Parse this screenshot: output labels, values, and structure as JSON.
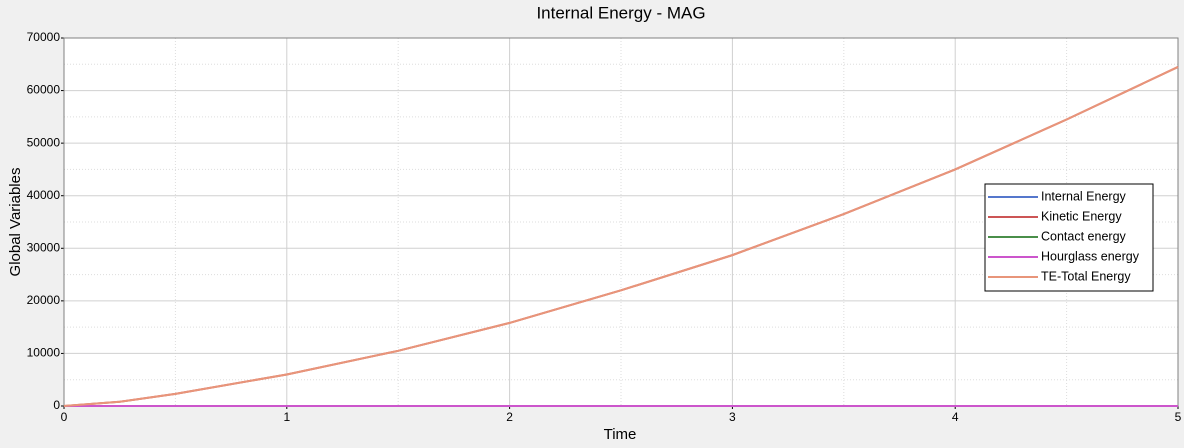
{
  "chart_data": {
    "type": "line",
    "title": "Internal Energy - MAG",
    "x_label": "Time",
    "y_label": "Global Variables",
    "x": [
      0,
      0.25,
      0.5,
      1,
      1.5,
      2,
      2.5,
      3,
      3.5,
      4,
      4.5,
      5
    ],
    "series": [
      {
        "name": "Internal Energy",
        "color": "#5577cc",
        "values": [
          0,
          0,
          0,
          0,
          0,
          0,
          0,
          0,
          0,
          0,
          0,
          0
        ]
      },
      {
        "name": "Kinetic Energy",
        "color": "#cc5555",
        "values": [
          0,
          800,
          2300,
          6000,
          10500,
          15800,
          22000,
          28700,
          36500,
          45000,
          54500,
          64500
        ]
      },
      {
        "name": "Contact energy",
        "color": "#4a8f4a",
        "values": [
          0,
          0,
          0,
          0,
          0,
          0,
          0,
          0,
          0,
          0,
          0,
          0
        ]
      },
      {
        "name": "Hourglass energy",
        "color": "#cc55cc",
        "values": [
          0,
          0,
          0,
          0,
          0,
          0,
          0,
          0,
          0,
          0,
          0,
          0
        ]
      },
      {
        "name": "TE-Total Energy",
        "color": "#e8957a",
        "values": [
          0,
          800,
          2300,
          6000,
          10500,
          15800,
          22000,
          28700,
          36500,
          45000,
          54500,
          64500
        ]
      }
    ],
    "xlim": [
      0,
      5
    ],
    "xticks": [
      0,
      1,
      2,
      3,
      4,
      5
    ],
    "ylim": [
      0,
      70000
    ],
    "yticks": [
      0,
      10000,
      20000,
      30000,
      40000,
      50000,
      60000,
      70000
    ],
    "grid": true,
    "minor_grid": true,
    "legend_position": "right"
  }
}
